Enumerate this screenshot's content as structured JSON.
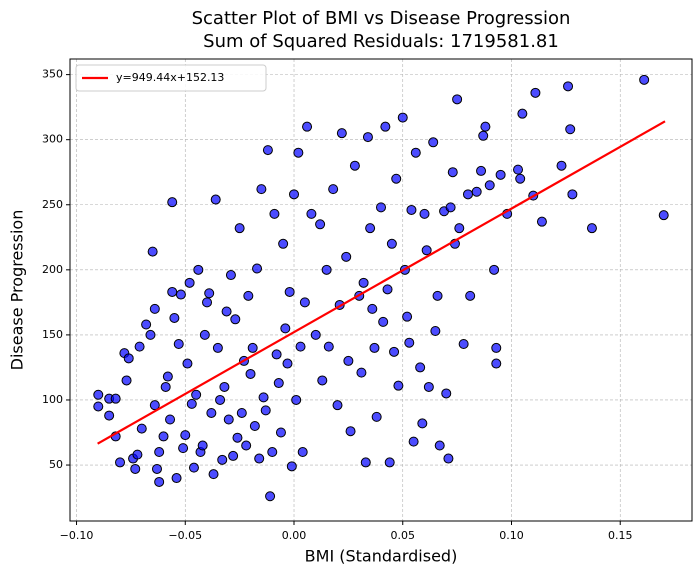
{
  "chart_data": {
    "type": "scatter",
    "title": "Scatter Plot of BMI vs Disease Progression",
    "subtitle": "Sum of Squared Residuals: 1719581.81",
    "xlabel": "BMI (Standardised)",
    "ylabel": "Disease Progression",
    "xlim": [
      -0.103,
      0.183
    ],
    "ylim": [
      7,
      362
    ],
    "xticks": [
      {
        "value": -0.1,
        "label": "−0.10"
      },
      {
        "value": -0.05,
        "label": "−0.05"
      },
      {
        "value": 0,
        "label": "0.00"
      },
      {
        "value": 0.05,
        "label": "0.05"
      },
      {
        "value": 0.1,
        "label": "0.10"
      },
      {
        "value": 0.15,
        "label": "0.15"
      }
    ],
    "yticks": [
      50,
      100,
      150,
      200,
      250,
      300,
      350
    ],
    "grid": true,
    "legend": "upper left",
    "series": [
      {
        "type": "scatter",
        "color": "blue",
        "edgecolor": "black",
        "x": [
          -0.09,
          -0.09,
          -0.085,
          -0.085,
          -0.082,
          -0.082,
          -0.08,
          -0.078,
          -0.077,
          -0.076,
          -0.074,
          -0.073,
          -0.072,
          -0.071,
          -0.07,
          -0.068,
          -0.066,
          -0.065,
          -0.064,
          -0.064,
          -0.063,
          -0.062,
          -0.062,
          -0.06,
          -0.059,
          -0.058,
          -0.057,
          -0.056,
          -0.056,
          -0.055,
          -0.054,
          -0.053,
          -0.052,
          -0.051,
          -0.05,
          -0.049,
          -0.048,
          -0.047,
          -0.046,
          -0.045,
          -0.044,
          -0.043,
          -0.042,
          -0.041,
          -0.04,
          -0.039,
          -0.038,
          -0.037,
          -0.036,
          -0.035,
          -0.034,
          -0.033,
          -0.032,
          -0.031,
          -0.03,
          -0.029,
          -0.028,
          -0.027,
          -0.026,
          -0.025,
          -0.024,
          -0.023,
          -0.022,
          -0.021,
          -0.02,
          -0.019,
          -0.018,
          -0.017,
          -0.016,
          -0.015,
          -0.014,
          -0.013,
          -0.012,
          -0.011,
          -0.01,
          -0.009,
          -0.008,
          -0.007,
          -0.006,
          -0.005,
          -0.004,
          -0.003,
          -0.002,
          -0.001,
          0.0,
          0.001,
          0.002,
          0.003,
          0.004,
          0.005,
          0.006,
          0.008,
          0.01,
          0.012,
          0.013,
          0.015,
          0.016,
          0.018,
          0.02,
          0.021,
          0.022,
          0.024,
          0.025,
          0.026,
          0.028,
          0.03,
          0.031,
          0.032,
          0.033,
          0.034,
          0.035,
          0.036,
          0.037,
          0.038,
          0.04,
          0.041,
          0.042,
          0.043,
          0.044,
          0.045,
          0.046,
          0.047,
          0.048,
          0.05,
          0.051,
          0.052,
          0.053,
          0.054,
          0.055,
          0.056,
          0.058,
          0.059,
          0.06,
          0.061,
          0.062,
          0.064,
          0.065,
          0.066,
          0.067,
          0.069,
          0.07,
          0.071,
          0.072,
          0.073,
          0.074,
          0.075,
          0.076,
          0.078,
          0.08,
          0.081,
          0.084,
          0.086,
          0.087,
          0.088,
          0.09,
          0.092,
          0.093,
          0.093,
          0.095,
          0.098,
          0.103,
          0.104,
          0.105,
          0.11,
          0.111,
          0.114,
          0.123,
          0.126,
          0.127,
          0.128,
          0.137,
          0.161,
          0.17
        ],
        "y": [
          104,
          95,
          101,
          88,
          101,
          72,
          52,
          136,
          115,
          132,
          55,
          47,
          58,
          141,
          78,
          158,
          150,
          214,
          96,
          170,
          47,
          37,
          60,
          72,
          110,
          118,
          85,
          252,
          183,
          163,
          40,
          143,
          181,
          63,
          73,
          128,
          190,
          97,
          48,
          104,
          200,
          60,
          65,
          150,
          175,
          182,
          90,
          43,
          254,
          140,
          100,
          54,
          110,
          168,
          85,
          196,
          57,
          162,
          71,
          232,
          90,
          130,
          65,
          180,
          120,
          140,
          80,
          201,
          55,
          262,
          102,
          92,
          292,
          26,
          60,
          243,
          135,
          113,
          75,
          220,
          155,
          128,
          183,
          49,
          258,
          100,
          290,
          141,
          60,
          175,
          310,
          243,
          150,
          235,
          115,
          200,
          141,
          262,
          96,
          173,
          305,
          210,
          130,
          76,
          280,
          180,
          121,
          190,
          52,
          302,
          232,
          170,
          140,
          87,
          248,
          160,
          310,
          185,
          52,
          220,
          137,
          270,
          111,
          317,
          200,
          164,
          144,
          246,
          68,
          290,
          125,
          82,
          243,
          215,
          110,
          298,
          153,
          180,
          65,
          245,
          105,
          55,
          248,
          275,
          220,
          331,
          232,
          143,
          258,
          180,
          260,
          276,
          303,
          310,
          265,
          200,
          140,
          128,
          273,
          243,
          277,
          270,
          320,
          257,
          336,
          237,
          280,
          341,
          308,
          258,
          232,
          346,
          242
        ]
      },
      {
        "type": "line",
        "name": "y=949.44x+152.13",
        "color": "red",
        "x": [
          -0.0903,
          0.1706
        ],
        "y": [
          66.4,
          314.1
        ]
      }
    ]
  }
}
